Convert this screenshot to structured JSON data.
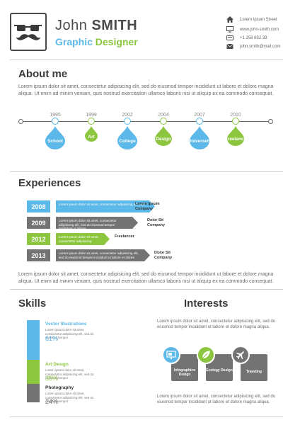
{
  "header": {
    "first_name": "John",
    "last_name": "SMITH",
    "role_part1": "Graphic",
    "role_part2": "Designer",
    "contacts": [
      {
        "icon": "home-icon",
        "text": "Lorem Ipsum Street"
      },
      {
        "icon": "monitor-icon",
        "text": "www.john-smith.com"
      },
      {
        "icon": "phone-icon",
        "text": "+1 258 852 33"
      },
      {
        "icon": "envelope-icon",
        "text": "john.smith@mail.com"
      }
    ]
  },
  "about": {
    "title": "About me",
    "text": "Lorem ipsum dolor sit amet, consectetur adipisicing elit, sed do eiusmod tempor incididunt ut labore et dolore magna aliqua. Ut enim ad minim veniam, quis nostrud exercitation ullamco laboris nisi ut aliquip ex ea commodo consequat."
  },
  "timeline": [
    {
      "year": "1995",
      "label": "School",
      "color": "#5bb8e8",
      "size": "large"
    },
    {
      "year": "1999",
      "label": "Art",
      "color": "#8cc63f",
      "size": "small"
    },
    {
      "year": "2002",
      "label": "College",
      "color": "#5bb8e8",
      "size": "large"
    },
    {
      "year": "2004",
      "label": "Design",
      "color": "#8cc63f",
      "size": "medium"
    },
    {
      "year": "2007",
      "label": "Universety",
      "color": "#5bb8e8",
      "size": "large"
    },
    {
      "year": "2010",
      "label": "Freelance",
      "color": "#8cc63f",
      "size": "medium"
    }
  ],
  "experiences": {
    "title": "Experiences",
    "items": [
      {
        "year": "2008",
        "desc": "Lorem ipsum dolor sit amet, consectetur adipisicing elit, sed",
        "company": "Lorem Ipsum Company",
        "color": "#5bb8e8"
      },
      {
        "year": "2009",
        "desc": "Lorem ipsum dolor sit amet, consectetur adipisicing elit, sed do eiusmod tempor incididunt ut labore",
        "company": "Dolor Sit Company",
        "color": "#737373"
      },
      {
        "year": "2012",
        "desc": "Lorem ipsum dolor sit amet, consectetur adipisicing",
        "company": "Freelancer",
        "color": "#8cc63f"
      },
      {
        "year": "2013",
        "desc": "Lorem ipsum dolor sit amet, consectetur adipisicing elit, sed do eiusmod tempor incididunt ut labore et dolore",
        "company": "Dolor Sit Company",
        "color": "#737373"
      }
    ],
    "text": "Lorem ipsum dolor sit amet, consectetur adipisicing elit, sed do eiusmod tempor incididunt ut labore et dolore magna aliqua. Ut enim ad minim veniam, quis nostrud exercitation ullamco laboris nisi ut aliquip ex ea commodo consequat."
  },
  "skills": {
    "title": "Skills",
    "items": [
      {
        "name": "Vector Illustrations",
        "text": "Lorem ipsum dolor sit amet, consectetur adipisicing elit, sed do eiusmod tempor",
        "percent": "61%",
        "color": "#5bb8e8"
      },
      {
        "name": "Art Design",
        "text": "Lorem ipsum dolor sit amet, consectetur adipisicing elit, sed do eiusmod tempor",
        "percent": "35%",
        "color": "#8cc63f"
      },
      {
        "name": "Photography",
        "text": "Lorem ipsum dolor sit amet, consectetur adipisicing elit, sed do eiusmod tempor",
        "percent": "24%",
        "color": "#737373"
      }
    ]
  },
  "interests": {
    "title": "Interests",
    "text_top": "Lorem ipsum dolor sit amet, consectetur adipisicing elit, sed do eiusmod tempor incididunt ut labore et dolore magna aliqua.",
    "items": [
      {
        "label": "Infographics Design",
        "icon": "presentation-icon",
        "color": "#5bb8e8"
      },
      {
        "label": "Ecology Design",
        "icon": "leaf-icon",
        "color": "#8cc63f"
      },
      {
        "label": "Traveling",
        "icon": "airplane-icon",
        "color": "#737373"
      }
    ],
    "text_bottom": "Lorem ipsum dolor sit amet, consectetur adipisicing elit, sed do eiusmod tempor incididunt ut labore et dolore magna aliqua."
  }
}
